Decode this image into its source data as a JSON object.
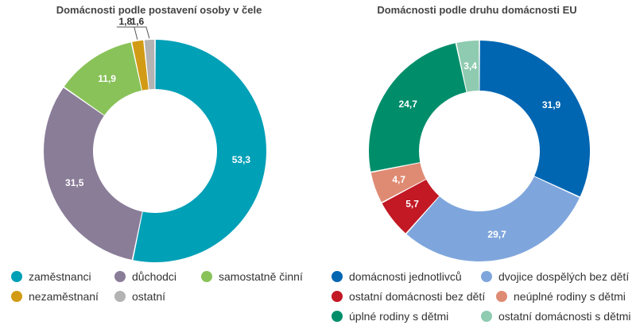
{
  "chart_data": [
    {
      "type": "pie",
      "title": "Domácnosti podle postavení osoby v čele",
      "categories": [
        "zaměstnanci",
        "důchodci",
        "samostatně činní",
        "nezaměstnaní",
        "ostatní"
      ],
      "values": [
        53.3,
        31.5,
        11.9,
        1.8,
        1.6
      ],
      "labels": [
        "53,3",
        "31,5",
        "11,9",
        "1,8",
        "1,6"
      ],
      "colors": [
        "#00a0b7",
        "#8a7d98",
        "#89c259",
        "#d29b15",
        "#b3b3b3"
      ],
      "label_colors": [
        "#ffffff",
        "#ffffff",
        "#ffffff",
        "#333333",
        "#333333"
      ],
      "donut": true,
      "legend": "bottom"
    },
    {
      "type": "pie",
      "title": "Domácnosti podle druhu domácnosti EU",
      "categories": [
        "domácnosti jednotlivců",
        "dvojice dospělých bez dětí",
        "ostatní domácnosti bez dětí",
        "neúplné rodiny s dětmi",
        "úplné rodiny s dětmi",
        "ostatní domácnosti s dětmi"
      ],
      "values": [
        31.9,
        29.7,
        5.7,
        4.7,
        24.7,
        3.4
      ],
      "labels": [
        "31,9",
        "29,7",
        "5,7",
        "4,7",
        "24,7",
        "3,4"
      ],
      "colors": [
        "#0066b2",
        "#7fa6dc",
        "#c21925",
        "#df8b74",
        "#008e6a",
        "#8ecbb0"
      ],
      "label_colors": [
        "#ffffff",
        "#ffffff",
        "#ffffff",
        "#ffffff",
        "#ffffff",
        "#ffffff"
      ],
      "donut": true,
      "legend": "bottom"
    }
  ]
}
